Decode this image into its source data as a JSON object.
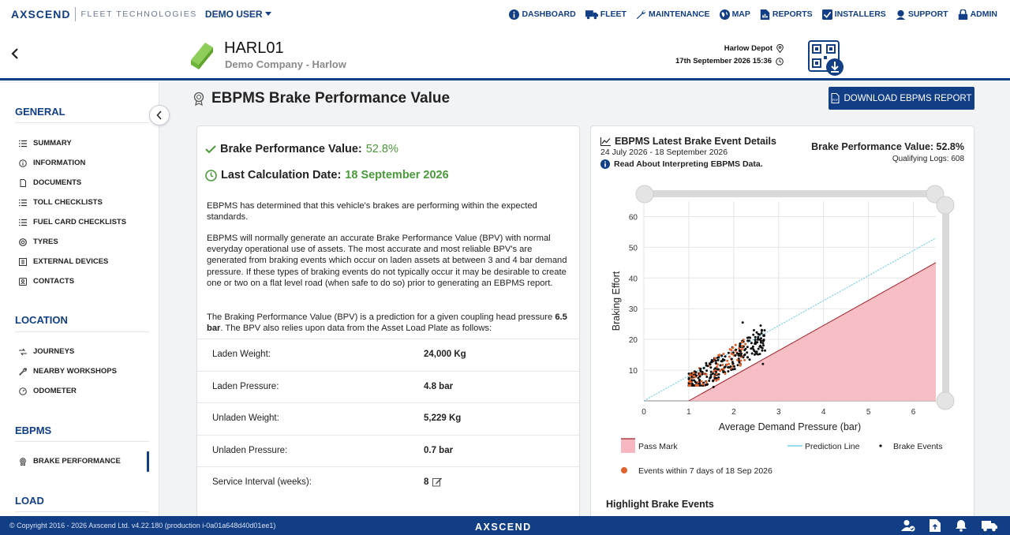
{
  "topbar": {
    "logo": "AXSCEND",
    "logo_sub": "FLEET TECHNOLOGIES",
    "user": "DEMO USER",
    "nav": [
      {
        "label": "DASHBOARD",
        "icon": "info-circle-icon"
      },
      {
        "label": "FLEET",
        "icon": "truck-icon"
      },
      {
        "label": "MAINTENANCE",
        "icon": "wrench-icon"
      },
      {
        "label": "MAP",
        "icon": "globe-icon"
      },
      {
        "label": "REPORTS",
        "icon": "report-icon"
      },
      {
        "label": "INSTALLERS",
        "icon": "check-square-icon"
      },
      {
        "label": "SUPPORT",
        "icon": "support-icon"
      },
      {
        "label": "ADMIN",
        "icon": "lock-icon"
      }
    ]
  },
  "asset": {
    "id": "HARL01",
    "company": "Demo Company - Harlow",
    "depot": "Harlow Depot",
    "datetime": "17th September 2026 15:36"
  },
  "sidebar": {
    "sections": [
      {
        "title": "GENERAL",
        "items": [
          "SUMMARY",
          "INFORMATION",
          "DOCUMENTS",
          "TOLL CHECKLISTS",
          "FUEL CARD CHECKLISTS",
          "TYRES",
          "EXTERNAL DEVICES",
          "CONTACTS"
        ]
      },
      {
        "title": "LOCATION",
        "items": [
          "JOURNEYS",
          "NEARBY WORKSHOPS",
          "ODOMETER"
        ]
      },
      {
        "title": "EBPMS",
        "items": [
          "BRAKE PERFORMANCE"
        ]
      },
      {
        "title": "LOAD",
        "items": []
      }
    ]
  },
  "page": {
    "title": "EBPMS Brake Performance Value",
    "download_label": "DOWNLOAD EBPMS REPORT"
  },
  "summary": {
    "bpv_label": "Brake Performance Value:",
    "bpv_value": "52.8%",
    "calc_label": "Last Calculation Date:",
    "calc_value": "18 September 2026",
    "para1": "EBPMS has determined that this vehicle's brakes are performing within the expected standards.",
    "para2": "EBPMS will normally generate an accurate Brake Performance Value (BPV) with normal everyday operational use of assets. The most accurate and most reliable BPV's are generated from braking events which occur on laden assets at between 3 and 4 bar demand pressure. If these types of braking events do not typically occur it may be desirable to create one or two on a flat level road (when safe to do so) prior to generating an EBPMS report.",
    "para3_a": "The Braking Performance Value (BPV) is a prediction for a given coupling head pressure ",
    "para3_bold": "6.5 bar",
    "para3_b": ". The BPV also relies upon data from the Asset Load Plate as follows:",
    "specs": [
      {
        "label": "Laden Weight:",
        "value": "24,000 Kg"
      },
      {
        "label": "Laden Pressure:",
        "value": "4.8 bar"
      },
      {
        "label": "Unladen Weight:",
        "value": "5,229 Kg"
      },
      {
        "label": "Unladen Pressure:",
        "value": "0.7 bar"
      },
      {
        "label": "Service Interval (weeks):",
        "value": "8"
      }
    ]
  },
  "details": {
    "title": "EBPMS Latest Brake Event Details",
    "date_range": "24 July 2026 - 18 September 2026",
    "info_link": "Read About Interpreting EBPMS Data.",
    "bpv": "Brake Performance Value: 52.8%",
    "logs": "Qualifying Logs: 608",
    "highlight": "Highlight Brake Events"
  },
  "chart_data": {
    "type": "scatter",
    "xlabel": "Average Demand Pressure (bar)",
    "ylabel": "Braking Effort",
    "xlim": [
      0,
      6.5
    ],
    "ylim": [
      0,
      65
    ],
    "x_ticks": [
      "0",
      "1",
      "2",
      "3",
      "4",
      "5",
      "6"
    ],
    "y_ticks": [
      "10",
      "20",
      "30",
      "40",
      "50",
      "60"
    ],
    "pass_mark": {
      "name": "Pass Mark",
      "points": [
        [
          1.0,
          0
        ],
        [
          6.5,
          45
        ]
      ],
      "color": "#f7b7c0",
      "line_color": "#a0202b"
    },
    "prediction_line": {
      "name": "Prediction Line",
      "points": [
        [
          0,
          0
        ],
        [
          6.5,
          53
        ]
      ],
      "color": "#5bc8e8"
    },
    "brake_events": {
      "name": "Brake Events",
      "color": "#111111"
    },
    "recent_events": {
      "name": "Events within 7 days of 18 Sep 2026",
      "color": "#e0622c"
    },
    "events_cluster": {
      "x_range": [
        1.0,
        2.7
      ],
      "y_range": [
        5,
        25
      ],
      "count": 608
    },
    "colors": {
      "grid": "#e6e6e6",
      "slider": "#d9d9d9"
    }
  },
  "footer": {
    "copyright": "© Copyright 2016 - 2026 Axscend Ltd. v4.22.180 (production i-0a01a648d40d01ee1)",
    "logo": "AXSCEND"
  }
}
